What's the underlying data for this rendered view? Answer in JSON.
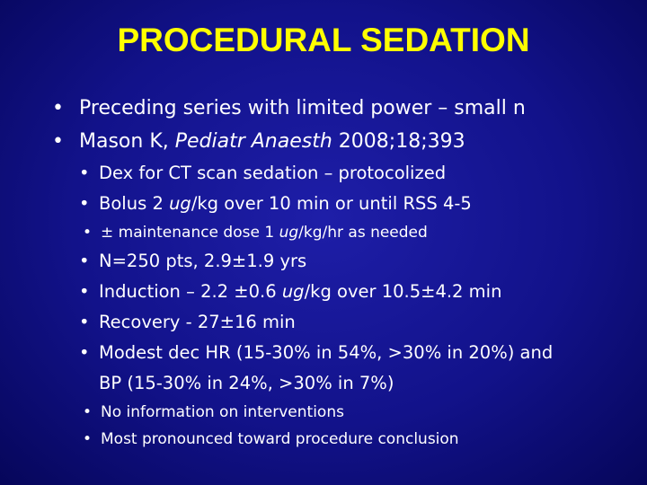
{
  "title": "PROCEDURAL SEDATION",
  "bullets": [
    {
      "parts": [
        "Preceding series with limited power – small n"
      ]
    },
    {
      "parts": [
        "Mason K, ",
        {
          "italic": "Pediatr Anaesth"
        },
        " 2008;18;393"
      ],
      "children": [
        {
          "parts": [
            "Dex for CT scan sedation – protocolized"
          ]
        },
        {
          "parts": [
            "Bolus 2 ",
            {
              "italic": "ug"
            },
            "/kg over 10 min or until RSS 4-5"
          ],
          "children": [
            {
              "parts": [
                "± maintenance dose 1 ",
                {
                  "italic": "ug"
                },
                "/kg/hr as needed"
              ]
            }
          ]
        },
        {
          "parts": [
            "N=250 pts, 2.9±1.9 yrs"
          ]
        },
        {
          "parts": [
            "Induction – 2.2 ±0.6 ",
            {
              "italic": "ug"
            },
            "/kg over 10.5±4.2 min"
          ]
        },
        {
          "parts": [
            "Recovery - 27±16 min"
          ]
        },
        {
          "parts": [
            "Modest dec HR (15-30% in 54%, >30% in 20%) and BP (15-30% in 24%, >30% in 7%)"
          ],
          "children": [
            {
              "parts": [
                "No information on interventions"
              ]
            },
            {
              "parts": [
                "Most pronounced toward procedure conclusion"
              ]
            }
          ]
        }
      ]
    }
  ]
}
